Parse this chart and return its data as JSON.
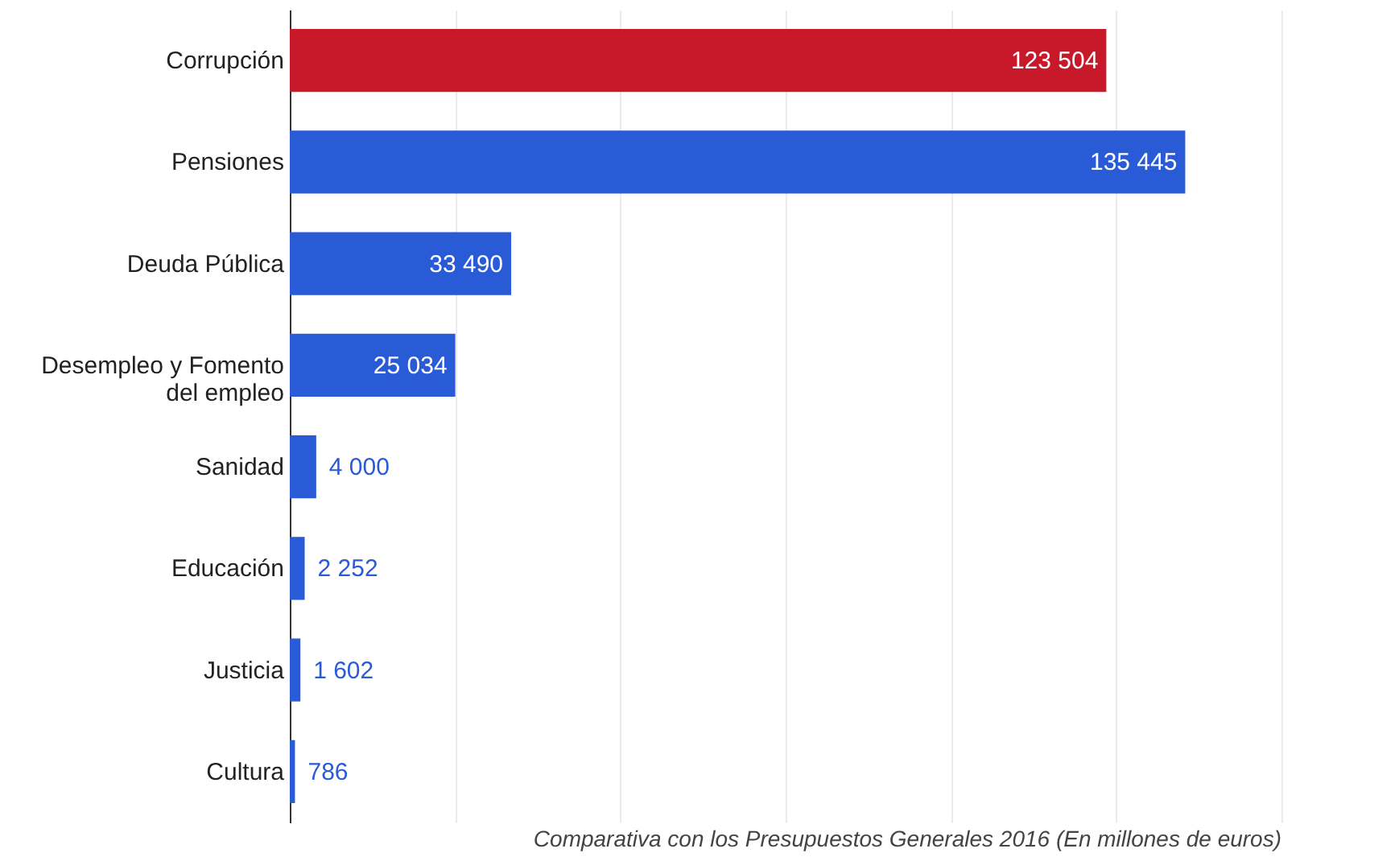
{
  "chart_data": {
    "type": "bar",
    "orientation": "horizontal",
    "categories": [
      "Corrupción",
      "Pensiones",
      "Deuda Pública",
      "Desempleo y Fomento del empleo",
      "Sanidad",
      "Educación",
      "Justicia",
      "Cultura"
    ],
    "values": [
      123504,
      135445,
      33490,
      25034,
      4000,
      2252,
      1602,
      786
    ],
    "colors": [
      "#c8192b",
      "#2a5bd7",
      "#2a5bd7",
      "#2a5bd7",
      "#2a5bd7",
      "#2a5bd7",
      "#2a5bd7",
      "#2a5bd7"
    ],
    "value_labels": [
      "123 504",
      "135 445",
      "33 490",
      "25 034",
      "4 000",
      "2 252",
      "1 602",
      "786"
    ],
    "xlim": [
      0,
      150000
    ],
    "xticks": [
      {
        "value": 0,
        "label": null
      },
      {
        "value": 25000,
        "label": null
      },
      {
        "value": 50000,
        "label": null
      },
      {
        "value": 75000,
        "label": null
      },
      {
        "value": 100000,
        "label": null
      },
      {
        "value": 125000,
        "label": null
      },
      {
        "value": 150000,
        "label": null
      }
    ],
    "grid": "x",
    "tick_labels": "y",
    "annotations": [
      "Comparativa con los Presupuestos Generales 2016 (En millones de euros)"
    ]
  }
}
